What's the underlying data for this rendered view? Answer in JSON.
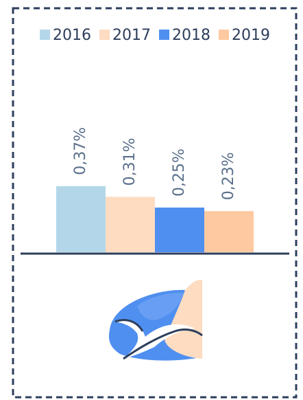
{
  "chart_data": {
    "type": "bar",
    "series": [
      {
        "name": "2016",
        "color": "#b3d7e8",
        "values": [
          0.37
        ],
        "value_labels": [
          "0,37%"
        ]
      },
      {
        "name": "2017",
        "color": "#fddcc2",
        "values": [
          0.31
        ],
        "value_labels": [
          "0,31%"
        ]
      },
      {
        "name": "2018",
        "color": "#4f8ff0",
        "values": [
          0.25
        ],
        "value_labels": [
          "0,25%"
        ]
      },
      {
        "name": "2019",
        "color": "#fec9a0",
        "values": [
          0.23
        ],
        "value_labels": [
          "0,23%"
        ]
      }
    ]
  }
}
